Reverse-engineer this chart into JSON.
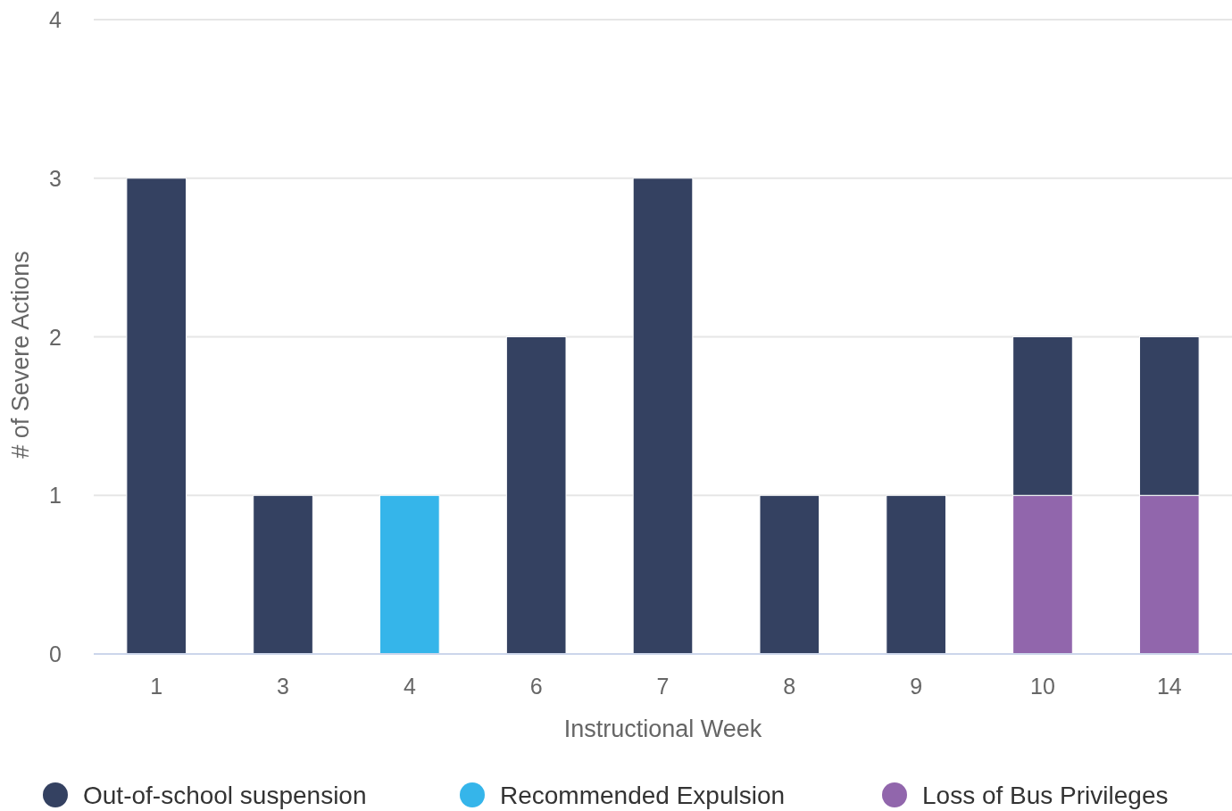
{
  "chart_data": {
    "type": "bar",
    "stacked": true,
    "xlabel": "Instructional Week",
    "ylabel": "# of Severe Actions",
    "categories": [
      "1",
      "3",
      "4",
      "6",
      "7",
      "8",
      "9",
      "10",
      "14"
    ],
    "series": [
      {
        "name": "Loss of Bus Privileges",
        "color": "#9166ac",
        "values": [
          null,
          null,
          null,
          null,
          null,
          null,
          null,
          1,
          1
        ]
      },
      {
        "name": "Recommended Expulsion",
        "color": "#35b5ea",
        "values": [
          null,
          null,
          1,
          null,
          null,
          null,
          null,
          null,
          null
        ]
      },
      {
        "name": "Out-of-school suspension",
        "color": "#344161",
        "values": [
          3,
          1,
          null,
          2,
          3,
          1,
          1,
          1,
          1
        ]
      }
    ],
    "ylim": [
      0,
      4
    ],
    "yticks": [
      0,
      1,
      2,
      3,
      4
    ],
    "grid": "y",
    "legend": "bottom"
  }
}
